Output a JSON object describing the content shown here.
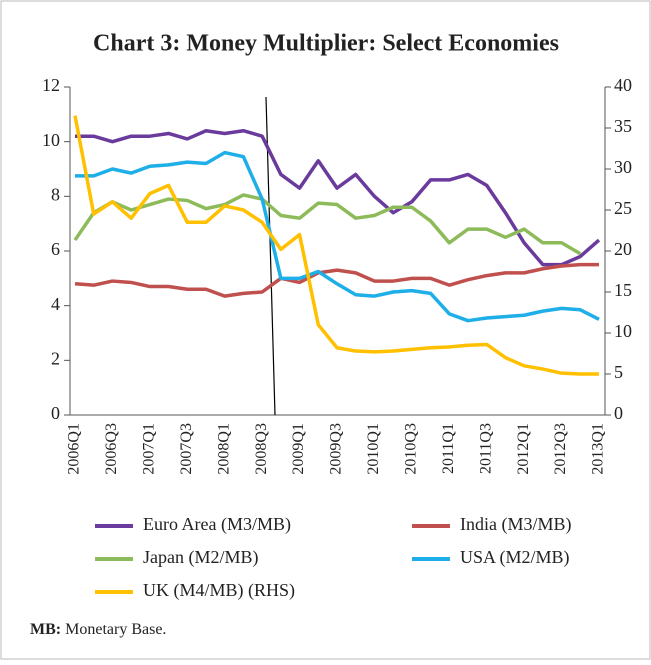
{
  "chart_data": {
    "type": "line",
    "title": "Chart 3: Money Multiplier: Select Economies",
    "categories": [
      "2006Q1",
      null,
      "2006Q3",
      null,
      "2007Q1",
      null,
      "2007Q3",
      null,
      "2008Q1",
      null,
      "2008Q3",
      null,
      "2009Q1",
      null,
      "2009Q3",
      null,
      "2010Q1",
      null,
      "2010Q3",
      null,
      "2011Q1",
      null,
      "2011Q3",
      null,
      "2012Q1",
      null,
      "2012Q3",
      null,
      "2013Q1"
    ],
    "series": [
      {
        "name": "Euro Area (M3/MB)",
        "color": "#6a3b9c",
        "values": [
          10.2,
          10.2,
          10.0,
          10.2,
          10.2,
          10.3,
          10.1,
          10.4,
          10.3,
          10.4,
          10.2,
          8.8,
          8.3,
          9.3,
          8.3,
          8.8,
          8.0,
          7.4,
          7.8,
          8.6,
          8.6,
          8.8,
          8.4,
          7.4,
          6.3,
          5.5,
          5.5,
          5.8,
          6.4
        ]
      },
      {
        "name": "India (M3/MB)",
        "color": "#c0504d",
        "values": [
          4.8,
          4.75,
          4.9,
          4.85,
          4.7,
          4.7,
          4.6,
          4.6,
          4.35,
          4.45,
          4.5,
          5.0,
          4.85,
          5.2,
          5.3,
          5.2,
          4.9,
          4.9,
          5.0,
          5.0,
          4.75,
          4.95,
          5.1,
          5.2,
          5.2,
          5.35,
          5.45,
          5.5,
          5.5
        ]
      },
      {
        "name": "Japan (M2/MB)",
        "color": "#8dbb5a",
        "values": [
          6.4,
          7.4,
          7.8,
          7.5,
          7.7,
          7.9,
          7.85,
          7.55,
          7.7,
          8.05,
          7.9,
          7.3,
          7.2,
          7.75,
          7.7,
          7.2,
          7.3,
          7.6,
          7.6,
          7.1,
          6.3,
          6.8,
          6.8,
          6.5,
          6.8,
          6.3,
          6.3,
          5.9,
          null
        ]
      },
      {
        "name": "USA (M2/MB)",
        "color": "#1eaee8",
        "values": [
          8.75,
          8.75,
          9.0,
          8.85,
          9.1,
          9.15,
          9.25,
          9.2,
          9.6,
          9.45,
          7.9,
          5.0,
          5.0,
          5.25,
          4.8,
          4.4,
          4.35,
          4.5,
          4.55,
          4.45,
          3.7,
          3.45,
          3.55,
          3.6,
          3.65,
          3.8,
          3.9,
          3.85,
          3.5
        ]
      },
      {
        "name": "UK (M4/MB) (RHS)",
        "color": "#ffc000",
        "axis": "y2",
        "values": [
          36.5,
          24.5,
          26,
          24,
          27,
          28,
          23.5,
          23.5,
          25.5,
          25,
          23.5,
          20.2,
          22,
          11,
          8.2,
          7.8,
          7.7,
          7.8,
          8,
          8.2,
          8.3,
          8.5,
          8.6,
          7,
          6,
          5.6,
          5.1,
          5,
          5
        ]
      }
    ],
    "ylim": [
      0,
      12
    ],
    "yticks": [
      0,
      2,
      4,
      6,
      8,
      10,
      12
    ],
    "y2lim": [
      0,
      40
    ],
    "y2ticks": [
      0,
      5,
      10,
      15,
      20,
      25,
      30,
      35,
      40
    ]
  },
  "note": {
    "label": "MB:",
    "text": "Monetary Base."
  }
}
